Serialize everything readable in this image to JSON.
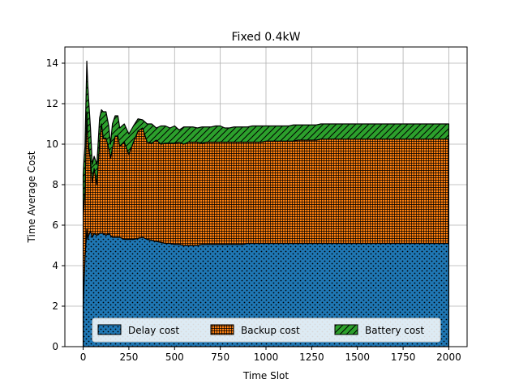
{
  "chart_data": {
    "type": "area",
    "stacked": true,
    "title": "Fixed 0.4kW",
    "xlabel": "Time Slot",
    "ylabel": "Time Average Cost",
    "xlim": [
      -100,
      2100
    ],
    "ylim": [
      0,
      14.8
    ],
    "xticks": [
      0,
      250,
      500,
      750,
      1000,
      1250,
      1500,
      1750,
      2000
    ],
    "yticks": [
      0,
      2,
      4,
      6,
      8,
      10,
      12,
      14
    ],
    "grid": true,
    "legend": {
      "position": "bottom",
      "ncol": 3
    },
    "x": [
      0,
      10,
      20,
      25,
      30,
      40,
      50,
      60,
      75,
      90,
      100,
      110,
      125,
      140,
      150,
      160,
      175,
      190,
      200,
      225,
      250,
      275,
      300,
      325,
      350,
      375,
      400,
      425,
      450,
      475,
      500,
      525,
      550,
      575,
      600,
      625,
      650,
      675,
      700,
      725,
      750,
      775,
      800,
      825,
      850,
      875,
      900,
      925,
      950,
      975,
      1000,
      1025,
      1050,
      1075,
      1100,
      1125,
      1150,
      1175,
      1200,
      1225,
      1250,
      1275,
      1300,
      1325,
      1350,
      1375,
      1400,
      1425,
      1450,
      1475,
      1500,
      1525,
      1550,
      1575,
      1600,
      1625,
      1650,
      1675,
      1700,
      1725,
      1750,
      1775,
      1800,
      1825,
      1850,
      1875,
      1900,
      1925,
      1950,
      1975,
      2000
    ],
    "series": [
      {
        "name": "Delay cost",
        "color": "#1f77b4",
        "hatch": "dots",
        "values": [
          2.0,
          4.4,
          5.8,
          5.3,
          5.5,
          5.7,
          5.4,
          5.6,
          5.5,
          5.6,
          5.6,
          5.6,
          5.5,
          5.6,
          5.5,
          5.4,
          5.4,
          5.4,
          5.4,
          5.3,
          5.3,
          5.3,
          5.35,
          5.4,
          5.3,
          5.25,
          5.2,
          5.15,
          5.1,
          5.1,
          5.05,
          5.05,
          5.0,
          5.0,
          5.0,
          5.0,
          5.05,
          5.05,
          5.05,
          5.05,
          5.05,
          5.05,
          5.05,
          5.05,
          5.05,
          5.05,
          5.1,
          5.1,
          5.1,
          5.1,
          5.1,
          5.1,
          5.1,
          5.1,
          5.1,
          5.1,
          5.1,
          5.1,
          5.1,
          5.1,
          5.1,
          5.1,
          5.1,
          5.1,
          5.1,
          5.1,
          5.1,
          5.1,
          5.1,
          5.1,
          5.1,
          5.1,
          5.1,
          5.1,
          5.1,
          5.1,
          5.1,
          5.1,
          5.1,
          5.1,
          5.1,
          5.1,
          5.1,
          5.1,
          5.1,
          5.1,
          5.1,
          5.1,
          5.1,
          5.1,
          5.1
        ]
      },
      {
        "name": "Backup cost",
        "color": "#ff7f0e",
        "hatch": "grid",
        "values": [
          4.5,
          3.2,
          5.8,
          5.0,
          4.4,
          3.5,
          2.7,
          3.2,
          2.5,
          4.5,
          5.4,
          4.7,
          4.8,
          4.2,
          3.8,
          4.4,
          5.0,
          5.0,
          4.5,
          4.8,
          4.2,
          4.8,
          5.3,
          5.4,
          4.8,
          4.8,
          5.0,
          4.85,
          4.95,
          4.95,
          5.0,
          5.05,
          5.0,
          5.1,
          5.1,
          5.1,
          5.0,
          5.05,
          5.05,
          5.05,
          5.05,
          5.05,
          5.05,
          5.05,
          5.05,
          5.05,
          5.0,
          5.0,
          5.0,
          5.0,
          5.05,
          5.05,
          5.05,
          5.05,
          5.05,
          5.05,
          5.05,
          5.1,
          5.1,
          5.1,
          5.1,
          5.1,
          5.15,
          5.15,
          5.15,
          5.15,
          5.15,
          5.15,
          5.15,
          5.15,
          5.15,
          5.15,
          5.15,
          5.15,
          5.15,
          5.15,
          5.15,
          5.15,
          5.15,
          5.15,
          5.15,
          5.15,
          5.15,
          5.15,
          5.15,
          5.15,
          5.15,
          5.15,
          5.15,
          5.15,
          5.15
        ]
      },
      {
        "name": "Battery cost",
        "color": "#2ca02c",
        "hatch": "diagonal",
        "values": [
          2.0,
          2.3,
          2.5,
          2.7,
          2.3,
          1.6,
          0.9,
          0.6,
          1.0,
          1.2,
          0.7,
          1.3,
          1.3,
          1.1,
          0.7,
          1.2,
          1.0,
          1.0,
          0.9,
          0.9,
          1.0,
          0.8,
          0.6,
          0.4,
          0.9,
          0.95,
          0.6,
          0.9,
          0.85,
          0.75,
          0.85,
          0.6,
          0.85,
          0.75,
          0.75,
          0.7,
          0.8,
          0.75,
          0.75,
          0.8,
          0.8,
          0.7,
          0.7,
          0.75,
          0.75,
          0.75,
          0.75,
          0.8,
          0.8,
          0.8,
          0.75,
          0.75,
          0.75,
          0.75,
          0.75,
          0.75,
          0.8,
          0.75,
          0.75,
          0.75,
          0.75,
          0.75,
          0.75,
          0.75,
          0.75,
          0.75,
          0.75,
          0.75,
          0.75,
          0.75,
          0.75,
          0.75,
          0.75,
          0.75,
          0.75,
          0.75,
          0.75,
          0.75,
          0.75,
          0.75,
          0.75,
          0.75,
          0.75,
          0.75,
          0.75,
          0.75,
          0.75,
          0.75,
          0.75,
          0.75,
          0.75
        ]
      }
    ]
  }
}
